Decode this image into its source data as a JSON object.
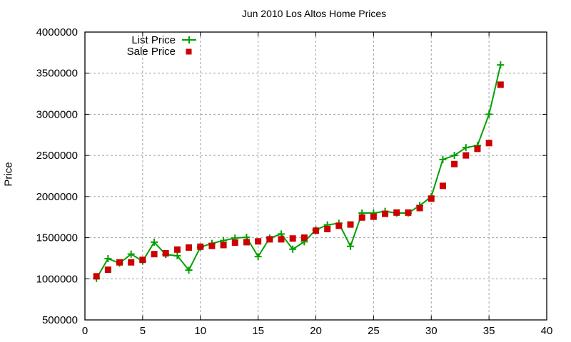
{
  "chart_data": {
    "type": "line",
    "title": "Jun 2010 Los Altos Home Prices",
    "xlabel": "",
    "ylabel": "Price",
    "xlim": [
      0,
      40
    ],
    "ylim": [
      500000,
      4000000
    ],
    "x_ticks": [
      0,
      5,
      10,
      15,
      20,
      25,
      30,
      35,
      40
    ],
    "y_ticks": [
      500000,
      1000000,
      1500000,
      2000000,
      2500000,
      3000000,
      3500000,
      4000000
    ],
    "grid": true,
    "legend_position": "top-left",
    "x": [
      1,
      2,
      3,
      4,
      5,
      6,
      7,
      8,
      9,
      10,
      11,
      12,
      13,
      14,
      15,
      16,
      17,
      18,
      19,
      20,
      21,
      22,
      23,
      24,
      25,
      26,
      27,
      28,
      29,
      30,
      31,
      32,
      33,
      34,
      35,
      36
    ],
    "series": [
      {
        "name": "List Price",
        "style": "linespoints",
        "marker": "plus",
        "color": "#00a000",
        "values": [
          1005000,
          1245000,
          1190000,
          1300000,
          1215000,
          1445000,
          1295000,
          1280000,
          1105000,
          1385000,
          1430000,
          1465000,
          1495000,
          1505000,
          1270000,
          1495000,
          1545000,
          1360000,
          1450000,
          1595000,
          1655000,
          1675000,
          1395000,
          1800000,
          1800000,
          1820000,
          1800000,
          1800000,
          1890000,
          2000000,
          2450000,
          2500000,
          2595000,
          2620000,
          3000000,
          3600000
        ]
      },
      {
        "name": "Sale Price",
        "style": "points",
        "marker": "square",
        "color": "#cc0000",
        "values": [
          1030000,
          1110000,
          1200000,
          1200000,
          1230000,
          1300000,
          1310000,
          1355000,
          1380000,
          1390000,
          1400000,
          1410000,
          1440000,
          1445000,
          1455000,
          1480000,
          1480000,
          1490000,
          1500000,
          1585000,
          1605000,
          1645000,
          1660000,
          1745000,
          1755000,
          1790000,
          1805000,
          1805000,
          1860000,
          1975000,
          2130000,
          2395000,
          2500000,
          2580000,
          2650000,
          3360000
        ]
      }
    ]
  },
  "colors": {
    "list": "#00a000",
    "sale": "#cc0000",
    "grid": "#a0a0a0",
    "axis": "#000000"
  }
}
